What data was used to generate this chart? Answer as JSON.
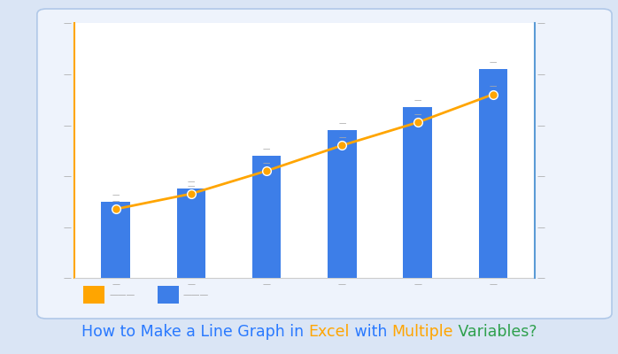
{
  "categories": [
    "c1",
    "c2",
    "c3",
    "c4",
    "c5",
    "c6"
  ],
  "bar_values": [
    30,
    35,
    48,
    58,
    67,
    82
  ],
  "line_values": [
    27,
    33,
    42,
    52,
    61,
    72
  ],
  "bar_color": "#3d7ee8",
  "line_color": "#FFA500",
  "ylim": [
    0,
    100
  ],
  "yticks_left": [
    0,
    20,
    40,
    60,
    80,
    100
  ],
  "yticks_right": [
    0,
    20,
    40,
    60,
    80,
    100
  ],
  "bg_outer": "#dae5f5",
  "bg_inner": "#eef3fc",
  "bg_plot": "#ffffff",
  "spine_left_color": "#FFA500",
  "spine_right_color": "#5b9bd5",
  "spine_bottom_color": "#cccccc",
  "title_parts": [
    {
      "text": "How to Make a Line Graph in ",
      "color": "#2979ff"
    },
    {
      "text": "Excel",
      "color": "#FFA500"
    },
    {
      "text": " with ",
      "color": "#2979ff"
    },
    {
      "text": "Multiple",
      "color": "#FFA500"
    },
    {
      "text": " Variables?",
      "color": "#2ea04d"
    }
  ],
  "title_fontsize": 12.5,
  "legend_orange_color": "#FFA500",
  "legend_blue_color": "#3d7ee8",
  "tick_label_color": "#aaaaaa",
  "tick_label_char": "—",
  "bar_width": 0.38
}
